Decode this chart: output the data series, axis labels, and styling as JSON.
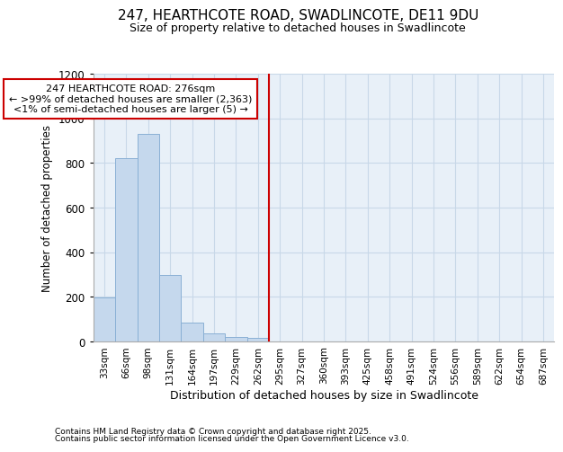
{
  "title_line1": "247, HEARTHCOTE ROAD, SWADLINCOTE, DE11 9DU",
  "title_line2": "Size of property relative to detached houses in Swadlincote",
  "xlabel": "Distribution of detached houses by size in Swadlincote",
  "ylabel": "Number of detached properties",
  "footnote1": "Contains HM Land Registry data © Crown copyright and database right 2025.",
  "footnote2": "Contains public sector information licensed under the Open Government Licence v3.0.",
  "bin_labels": [
    "33sqm",
    "66sqm",
    "98sqm",
    "131sqm",
    "164sqm",
    "197sqm",
    "229sqm",
    "262sqm",
    "295sqm",
    "327sqm",
    "360sqm",
    "393sqm",
    "425sqm",
    "458sqm",
    "491sqm",
    "524sqm",
    "556sqm",
    "589sqm",
    "622sqm",
    "654sqm",
    "687sqm"
  ],
  "bar_values": [
    197,
    820,
    930,
    300,
    85,
    38,
    20,
    15,
    0,
    0,
    0,
    0,
    0,
    0,
    0,
    0,
    0,
    0,
    0,
    0,
    0
  ],
  "bar_color": "#c5d8ed",
  "bar_edge_color": "#8ab0d5",
  "plot_bg_color": "#e8f0f8",
  "fig_bg_color": "#ffffff",
  "grid_color": "#c8d8e8",
  "vline_x": 7.5,
  "vline_color": "#cc0000",
  "annotation_text": "247 HEARTHCOTE ROAD: 276sqm\n← >99% of detached houses are smaller (2,363)\n<1% of semi-detached houses are larger (5) →",
  "annotation_box_facecolor": "#ffffff",
  "annotation_box_edgecolor": "#cc0000",
  "ylim": [
    0,
    1200
  ],
  "yticks": [
    0,
    200,
    400,
    600,
    800,
    1000,
    1200
  ]
}
